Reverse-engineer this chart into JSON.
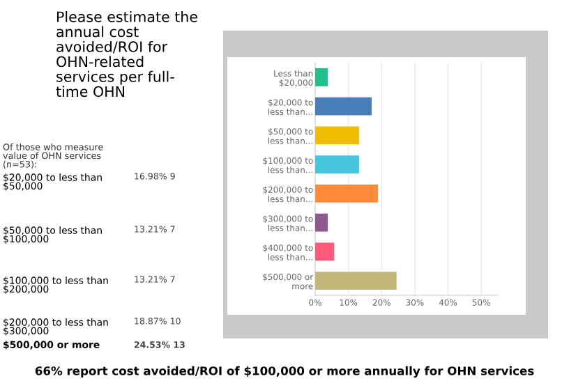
{
  "chart_data": {
    "type": "bar",
    "orientation": "horizontal",
    "title": "Please estimate the\nannual cost\navoided/ROI for\nOHN-related\nservices per full-\ntime OHN",
    "subtitle": "Of those who measure\nvalue of OHN services\n(n=53):",
    "categories": [
      "Less than\n$20,000",
      "$20,000 to\nless than...",
      "$50,000 to\nless than...",
      "$100,000 to\nless than...",
      "$200,000 to\nless than...",
      "$300,000 to\nless than...",
      "$400,000 to\nless than...",
      "$500,000 or\nmore"
    ],
    "values": [
      3.8,
      17.0,
      13.2,
      13.2,
      18.9,
      3.8,
      5.7,
      24.5
    ],
    "colors": [
      "#1fbf8f",
      "#4a7ebb",
      "#f0be00",
      "#45c6dc",
      "#ff8c3a",
      "#8c5a8c",
      "#ff5a78",
      "#c3b87a"
    ],
    "xlim": [
      0,
      55
    ],
    "xticks": [
      {
        "value": 0,
        "label": "0%"
      },
      {
        "value": 10,
        "label": "10%"
      },
      {
        "value": 20,
        "label": "20%"
      },
      {
        "value": 30,
        "label": "30%"
      },
      {
        "value": 40,
        "label": "40%"
      },
      {
        "value": 50,
        "label": "50%"
      }
    ],
    "grid": "x",
    "annotations": [
      "$20,000 to less than\n$50,000",
      "16.98% 9",
      "$50,000 to less than\n$100,000",
      "13.21% 7",
      "$100,000 to less than\n$200,000",
      "13.21% 7",
      "$200,000 to less than\n$300,000",
      "18.87% 10",
      "$500,000 or more",
      "24.53% 13",
      "66% report cost avoided/ROI of $100,000 or more annually for OHN services"
    ]
  }
}
